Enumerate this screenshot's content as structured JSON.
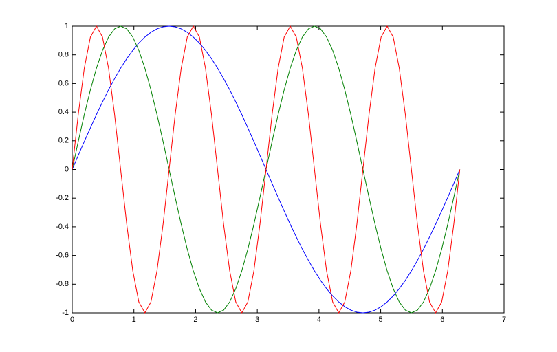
{
  "chart_data": {
    "type": "line",
    "x": [
      0,
      0.098,
      0.196,
      0.295,
      0.393,
      0.491,
      0.589,
      0.687,
      0.785,
      0.884,
      0.982,
      1.08,
      1.178,
      1.276,
      1.374,
      1.473,
      1.571,
      1.669,
      1.767,
      1.865,
      1.963,
      2.062,
      2.16,
      2.258,
      2.356,
      2.454,
      2.553,
      2.651,
      2.749,
      2.847,
      2.945,
      3.043,
      3.142,
      3.24,
      3.338,
      3.436,
      3.534,
      3.632,
      3.731,
      3.829,
      3.927,
      4.025,
      4.123,
      4.222,
      4.32,
      4.418,
      4.516,
      4.614,
      4.712,
      4.811,
      4.909,
      5.007,
      5.105,
      5.203,
      5.301,
      5.4,
      5.498,
      5.596,
      5.694,
      5.792,
      5.89,
      5.989,
      6.087,
      6.185,
      6.283
    ],
    "series": [
      {
        "color": "#0000ff",
        "values": [
          0,
          0.098,
          0.195,
          0.29,
          0.383,
          0.471,
          0.556,
          0.634,
          0.707,
          0.773,
          0.831,
          0.882,
          0.924,
          0.957,
          0.981,
          0.995,
          1,
          0.995,
          0.981,
          0.957,
          0.924,
          0.882,
          0.831,
          0.773,
          0.707,
          0.634,
          0.556,
          0.471,
          0.383,
          0.29,
          0.195,
          0.098,
          0,
          -0.098,
          -0.195,
          -0.29,
          -0.383,
          -0.471,
          -0.556,
          -0.634,
          -0.707,
          -0.773,
          -0.831,
          -0.882,
          -0.924,
          -0.957,
          -0.981,
          -0.995,
          -1,
          -0.995,
          -0.981,
          -0.957,
          -0.924,
          -0.882,
          -0.831,
          -0.773,
          -0.707,
          -0.634,
          -0.556,
          -0.471,
          -0.383,
          -0.29,
          -0.195,
          -0.098,
          0
        ]
      },
      {
        "color": "#008000",
        "values": [
          0,
          0.195,
          0.383,
          0.556,
          0.707,
          0.831,
          0.924,
          0.981,
          1,
          0.981,
          0.924,
          0.831,
          0.707,
          0.556,
          0.383,
          0.195,
          0,
          -0.195,
          -0.383,
          -0.556,
          -0.707,
          -0.831,
          -0.924,
          -0.981,
          -1,
          -0.981,
          -0.924,
          -0.831,
          -0.707,
          -0.556,
          -0.383,
          -0.195,
          0,
          0.195,
          0.383,
          0.556,
          0.707,
          0.831,
          0.924,
          0.981,
          1,
          0.981,
          0.924,
          0.831,
          0.707,
          0.556,
          0.383,
          0.195,
          0,
          -0.195,
          -0.383,
          -0.556,
          -0.707,
          -0.831,
          -0.924,
          -0.981,
          -1,
          -0.981,
          -0.924,
          -0.831,
          -0.707,
          -0.556,
          -0.383,
          -0.195,
          0
        ]
      },
      {
        "color": "#ff0000",
        "values": [
          0,
          0.383,
          0.707,
          0.924,
          1,
          0.924,
          0.707,
          0.383,
          0,
          -0.383,
          -0.707,
          -0.924,
          -1,
          -0.924,
          -0.707,
          -0.383,
          0,
          0.383,
          0.707,
          0.924,
          1,
          0.924,
          0.707,
          0.383,
          0,
          -0.383,
          -0.707,
          -0.924,
          -1,
          -0.924,
          -0.707,
          -0.383,
          0,
          0.383,
          0.707,
          0.924,
          1,
          0.924,
          0.707,
          0.383,
          0,
          -0.383,
          -0.707,
          -0.924,
          -1,
          -0.924,
          -0.707,
          -0.383,
          0,
          0.383,
          0.707,
          0.924,
          1,
          0.924,
          0.707,
          0.383,
          0,
          -0.383,
          -0.707,
          -0.924,
          -1,
          -0.924,
          -0.707,
          -0.383,
          0
        ]
      }
    ],
    "xlim": [
      0,
      7
    ],
    "xticks": [
      0,
      1,
      2,
      3,
      4,
      5,
      6,
      7
    ],
    "ylim": [
      -1,
      1
    ],
    "yticks": [
      -1,
      -0.8,
      -0.6,
      -0.4,
      -0.2,
      0,
      0.2,
      0.4,
      0.6,
      0.8,
      1
    ]
  }
}
